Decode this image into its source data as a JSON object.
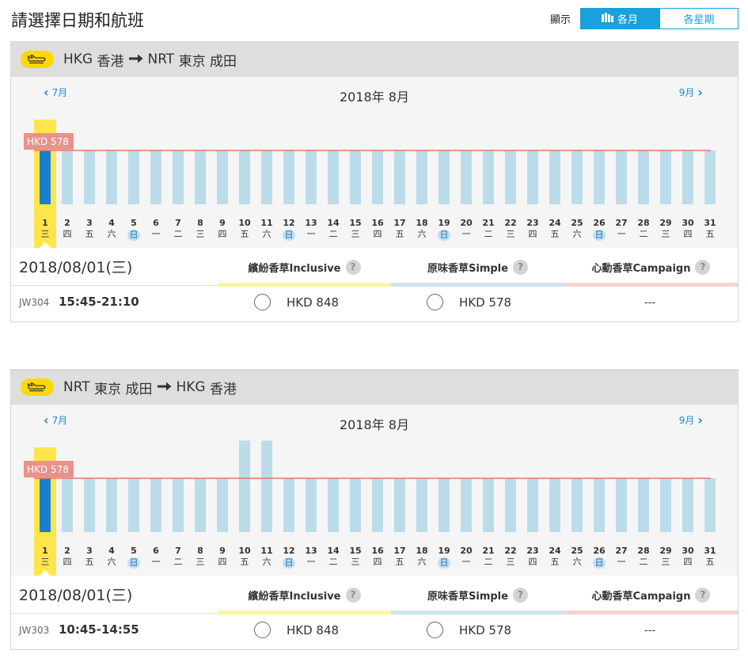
{
  "page": {
    "title": "請選擇日期和航班"
  },
  "view": {
    "label": "顯示",
    "monthly": "各月",
    "weekly": "各星期"
  },
  "routes": [
    {
      "header": {
        "from_code": "HKG",
        "from_name": "香港",
        "to_code": "NRT",
        "to_name": "東京 成田"
      },
      "prev_month": "7月",
      "month_title": "2018年 8月",
      "next_month": "9月",
      "lowest_price_label": "HKD 578",
      "days": [
        {
          "d": "1",
          "w": "三"
        },
        {
          "d": "2",
          "w": "四"
        },
        {
          "d": "3",
          "w": "五"
        },
        {
          "d": "4",
          "w": "六"
        },
        {
          "d": "5",
          "w": "日"
        },
        {
          "d": "6",
          "w": "一"
        },
        {
          "d": "7",
          "w": "二"
        },
        {
          "d": "8",
          "w": "三"
        },
        {
          "d": "9",
          "w": "四"
        },
        {
          "d": "10",
          "w": "五"
        },
        {
          "d": "11",
          "w": "六"
        },
        {
          "d": "12",
          "w": "日"
        },
        {
          "d": "13",
          "w": "一"
        },
        {
          "d": "14",
          "w": "二"
        },
        {
          "d": "15",
          "w": "三"
        },
        {
          "d": "16",
          "w": "四"
        },
        {
          "d": "17",
          "w": "五"
        },
        {
          "d": "18",
          "w": "六"
        },
        {
          "d": "19",
          "w": "日"
        },
        {
          "d": "20",
          "w": "一"
        },
        {
          "d": "21",
          "w": "二"
        },
        {
          "d": "22",
          "w": "三"
        },
        {
          "d": "23",
          "w": "四"
        },
        {
          "d": "24",
          "w": "五"
        },
        {
          "d": "25",
          "w": "六"
        },
        {
          "d": "26",
          "w": "日"
        },
        {
          "d": "27",
          "w": "一"
        },
        {
          "d": "28",
          "w": "二"
        },
        {
          "d": "29",
          "w": "三"
        },
        {
          "d": "30",
          "w": "四"
        },
        {
          "d": "31",
          "w": "五"
        }
      ],
      "selected_day": 1,
      "bar_levels": [
        1,
        1,
        1,
        1,
        1,
        1,
        1,
        1,
        1,
        1,
        1,
        1,
        1,
        1,
        1,
        1,
        1,
        1,
        1,
        1,
        1,
        1,
        1,
        1,
        1,
        1,
        1,
        1,
        1,
        1,
        1
      ],
      "detail_date": "2018/08/01(三)",
      "fares": [
        "繽紛香草Inclusive",
        "原味香草Simple",
        "心動香草Campaign"
      ],
      "flight": {
        "no": "JW304",
        "time": "15:45-21:10",
        "price_inclusive": "HKD 848",
        "price_simple": "HKD 578",
        "campaign": "---"
      }
    },
    {
      "header": {
        "from_code": "NRT",
        "from_name": "東京 成田",
        "to_code": "HKG",
        "to_name": "香港"
      },
      "prev_month": "7月",
      "month_title": "2018年 8月",
      "next_month": "9月",
      "lowest_price_label": "HKD 578",
      "days": [
        {
          "d": "1",
          "w": "三"
        },
        {
          "d": "2",
          "w": "四"
        },
        {
          "d": "3",
          "w": "五"
        },
        {
          "d": "4",
          "w": "六"
        },
        {
          "d": "5",
          "w": "日"
        },
        {
          "d": "6",
          "w": "一"
        },
        {
          "d": "7",
          "w": "二"
        },
        {
          "d": "8",
          "w": "三"
        },
        {
          "d": "9",
          "w": "四"
        },
        {
          "d": "10",
          "w": "五"
        },
        {
          "d": "11",
          "w": "六"
        },
        {
          "d": "12",
          "w": "日"
        },
        {
          "d": "13",
          "w": "一"
        },
        {
          "d": "14",
          "w": "二"
        },
        {
          "d": "15",
          "w": "三"
        },
        {
          "d": "16",
          "w": "四"
        },
        {
          "d": "17",
          "w": "五"
        },
        {
          "d": "18",
          "w": "六"
        },
        {
          "d": "19",
          "w": "日"
        },
        {
          "d": "20",
          "w": "一"
        },
        {
          "d": "21",
          "w": "二"
        },
        {
          "d": "22",
          "w": "三"
        },
        {
          "d": "23",
          "w": "四"
        },
        {
          "d": "24",
          "w": "五"
        },
        {
          "d": "25",
          "w": "六"
        },
        {
          "d": "26",
          "w": "日"
        },
        {
          "d": "27",
          "w": "一"
        },
        {
          "d": "28",
          "w": "二"
        },
        {
          "d": "29",
          "w": "三"
        },
        {
          "d": "30",
          "w": "四"
        },
        {
          "d": "31",
          "w": "五"
        }
      ],
      "selected_day": 1,
      "bar_levels": [
        1,
        1,
        1,
        1,
        1,
        1,
        1,
        1,
        1,
        1.7,
        1.7,
        1,
        1,
        1,
        1,
        1,
        1,
        1,
        1,
        1,
        1,
        1,
        1,
        1,
        1,
        1,
        1,
        1,
        1,
        1,
        1
      ],
      "detail_date": "2018/08/01(三)",
      "fares": [
        "繽紛香草Inclusive",
        "原味香草Simple",
        "心動香草Campaign"
      ],
      "flight": {
        "no": "JW303",
        "time": "10:45-14:55",
        "price_inclusive": "HKD 848",
        "price_simple": "HKD 578",
        "campaign": "---"
      }
    }
  ],
  "colors": {
    "accent": "#1aa0db",
    "bar": "#bddcea",
    "bar_selected": "#1a7fcc",
    "highlight": "#ffe54c",
    "price_line": "#e07a6e",
    "inclusive": "#fff3a8",
    "simple": "#cde3ef",
    "campaign": "#f6d2d2"
  }
}
